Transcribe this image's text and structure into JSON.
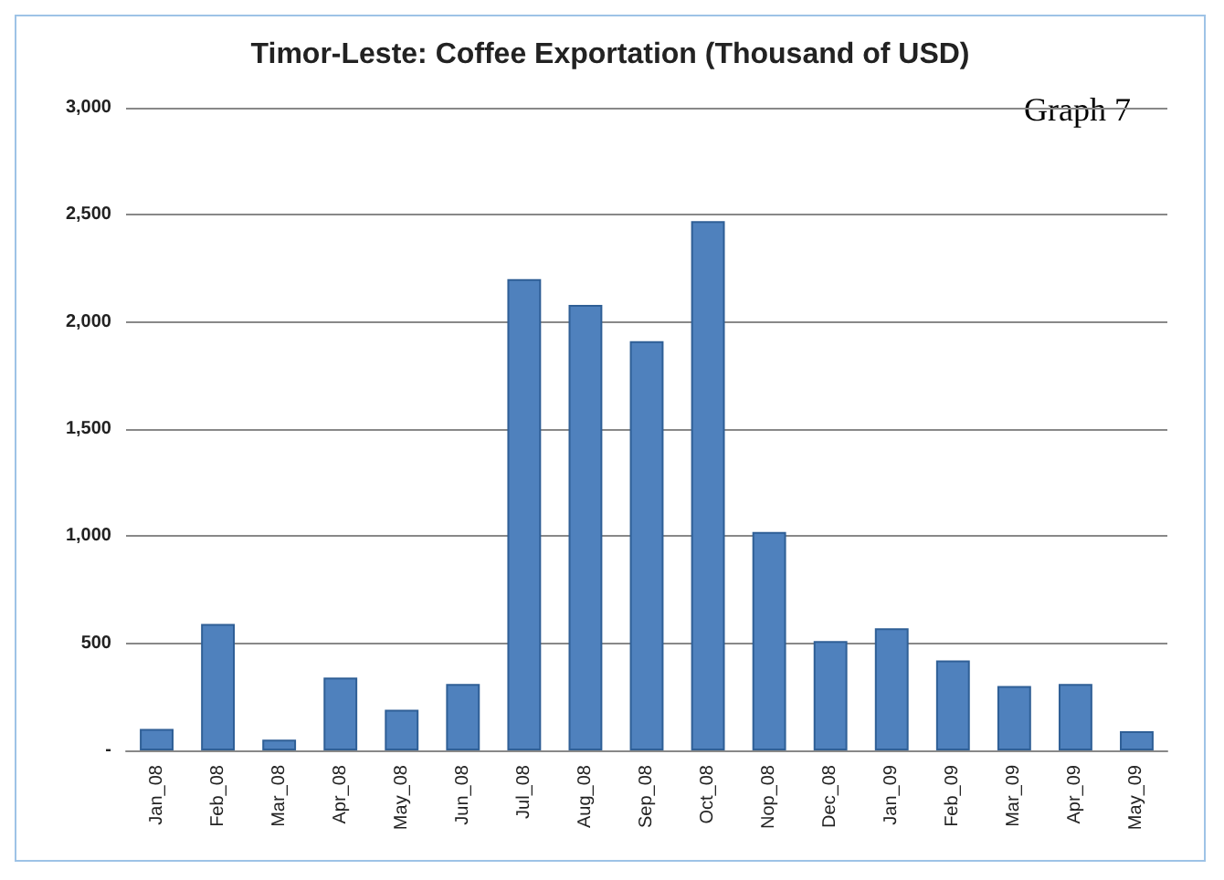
{
  "chart_data": {
    "type": "bar",
    "title": "Timor-Leste: Coffee Exportation (Thousand of USD)",
    "annotations": [
      "Graph 7"
    ],
    "categories": [
      "Jan_08",
      "Feb_08",
      "Mar_08",
      "Apr_08",
      "May_08",
      "Jun_08",
      "Jul_08",
      "Aug_08",
      "Sep_08",
      "Oct_08",
      "Nop_08",
      "Dec_08",
      "Jan_09",
      "Feb_09",
      "Mar_09",
      "Apr_09",
      "May_09"
    ],
    "values": [
      100,
      590,
      50,
      340,
      190,
      310,
      2200,
      2080,
      1910,
      2470,
      1020,
      510,
      570,
      420,
      300,
      310,
      90
    ],
    "color": "#4f81bd",
    "ylim": [
      0,
      3000
    ],
    "yticks": [
      {
        "value": 0,
        "label": "-"
      },
      {
        "value": 500,
        "label": "500"
      },
      {
        "value": 1000,
        "label": "1,000"
      },
      {
        "value": 1500,
        "label": "1,500"
      },
      {
        "value": 2000,
        "label": "2,000"
      },
      {
        "value": 2500,
        "label": "2,500"
      },
      {
        "value": 3000,
        "label": "3,000"
      }
    ],
    "grid": "y"
  }
}
